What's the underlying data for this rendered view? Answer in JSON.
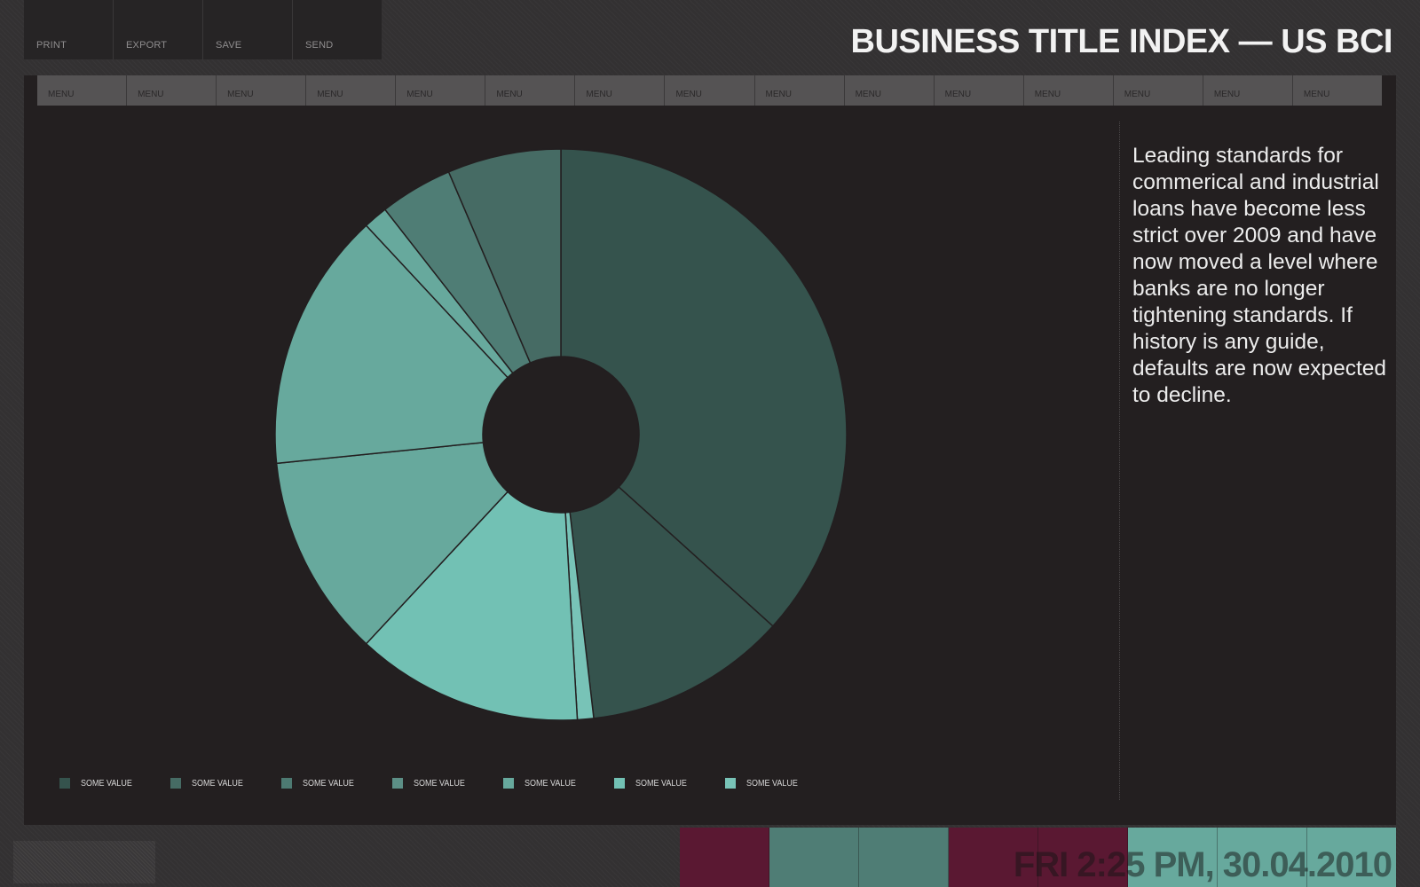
{
  "toolbar": {
    "buttons": [
      {
        "label": "PRINT",
        "icon": "print-icon"
      },
      {
        "label": "EXPORT",
        "icon": "export-icon"
      },
      {
        "label": "SAVE",
        "icon": "save-icon"
      },
      {
        "label": "SEND",
        "icon": "send-icon"
      }
    ]
  },
  "header": {
    "title": "BUSINESS TITLE INDEX — US BCI"
  },
  "menu_bar": {
    "items": [
      "MENU",
      "MENU",
      "MENU",
      "MENU",
      "MENU",
      "MENU",
      "MENU",
      "MENU",
      "MENU",
      "MENU",
      "MENU",
      "MENU",
      "MENU",
      "MENU",
      "MENU"
    ]
  },
  "sidebar": {
    "description": "Leading standards for commerical and industrial loans have become less strict over 2009 and have now moved a level where banks are no longer tightening standards. If history is any guide, defaults are now expected to decline."
  },
  "chart_data": {
    "type": "pie",
    "variant": "donut",
    "start_angle_degrees": 0,
    "slices": [
      {
        "value": 40.0,
        "color": "#35534d"
      },
      {
        "value": 12.5,
        "color": "#35534d"
      },
      {
        "value": 1.0,
        "color": "#78c3b7"
      },
      {
        "value": 14.0,
        "color": "#72c1b4"
      },
      {
        "value": 12.5,
        "color": "#67a99d"
      },
      {
        "value": 16.0,
        "color": "#67a99d"
      },
      {
        "value": 1.5,
        "color": "#67a99d"
      },
      {
        "value": 4.5,
        "color": "#4f7d75"
      },
      {
        "value": 7.0,
        "color": "#466b64"
      }
    ],
    "legend": [
      {
        "label": "SOME VALUE",
        "color": "#35534d"
      },
      {
        "label": "SOME VALUE",
        "color": "#466b64"
      },
      {
        "label": "SOME VALUE",
        "color": "#4d7a72"
      },
      {
        "label": "SOME VALUE",
        "color": "#5c8f86"
      },
      {
        "label": "SOME VALUE",
        "color": "#67a99d"
      },
      {
        "label": "SOME VALUE",
        "color": "#72c1b4"
      },
      {
        "label": "SOME VALUE",
        "color": "#78c3b7"
      }
    ]
  },
  "status_bar": {
    "datetime": "FRI 2:25 PM, 30.04.2010",
    "blocks": [
      "#5a1832",
      "#4f7d75",
      "#4f7d75",
      "#5a1832",
      "#5a1832",
      "#67a99d",
      "#67a99d",
      "#67a99d"
    ]
  }
}
